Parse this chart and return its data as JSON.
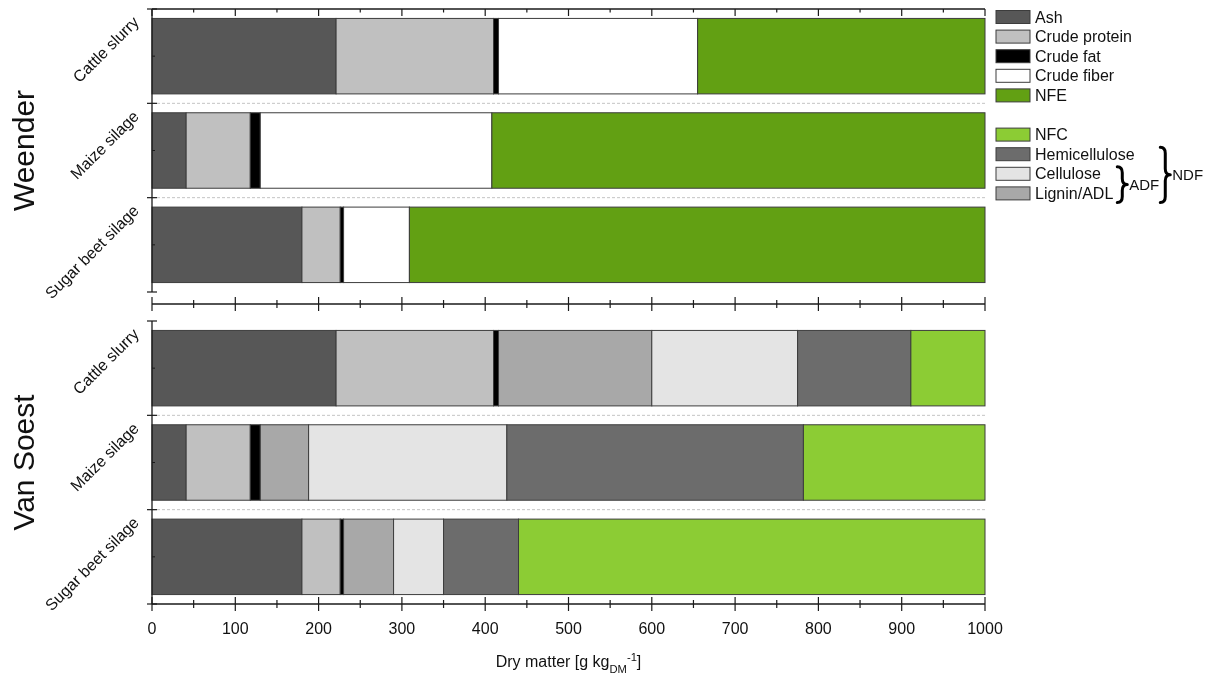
{
  "chart_data": [
    {
      "type": "bar",
      "orientation": "horizontal",
      "stacked": true,
      "ylabel": "Weender",
      "categories": [
        "Cattle slurry",
        "Maize silage",
        "Sugar beet silage"
      ],
      "series": [
        {
          "name": "Ash",
          "color": "#575757",
          "values": [
            221,
            41,
            180
          ]
        },
        {
          "name": "Crude protein",
          "color": "#c0c0c0",
          "values": [
            189,
            77,
            46
          ]
        },
        {
          "name": "Crude fat",
          "color": "#000000",
          "values": [
            6,
            12,
            4
          ]
        },
        {
          "name": "Crude fiber",
          "color": "#ffffff",
          "values": [
            239,
            278,
            79
          ]
        },
        {
          "name": "NFE",
          "color": "#62a013",
          "values": [
            345,
            592,
            691
          ]
        }
      ],
      "xlim": [
        0,
        1000
      ],
      "xticks": [
        0,
        {
          "value": 50,
          "label": null
        },
        100,
        {
          "value": 150,
          "label": null
        },
        200,
        {
          "value": 250,
          "label": null
        },
        300,
        {
          "value": 350,
          "label": null
        },
        400,
        {
          "value": 450,
          "label": null
        },
        500,
        {
          "value": 550,
          "label": null
        },
        600,
        {
          "value": 650,
          "label": null
        },
        700,
        {
          "value": 750,
          "label": null
        },
        800,
        {
          "value": 850,
          "label": null
        },
        900,
        {
          "value": 950,
          "label": null
        },
        1000
      ],
      "tick_labels": "y",
      "grid": "y",
      "legend": "right"
    },
    {
      "type": "bar",
      "orientation": "horizontal",
      "stacked": true,
      "ylabel": "Van Soest",
      "xlabel": "Dry matter [g kg$_{DM}$$^{-1}$]",
      "categories": [
        "Cattle slurry",
        "Maize silage",
        "Sugar beet silage"
      ],
      "series": [
        {
          "color": "#575757",
          "values": [
            221,
            41,
            180
          ]
        },
        {
          "color": "#c0c0c0",
          "values": [
            189,
            77,
            46
          ]
        },
        {
          "color": "#000000",
          "values": [
            6,
            12,
            4
          ]
        },
        {
          "name": "Lignin/ADL",
          "color": "#a8a8a8",
          "values": [
            184,
            58,
            60
          ]
        },
        {
          "name": "Cellulose",
          "color": "#e4e4e4",
          "values": [
            175,
            238,
            60
          ]
        },
        {
          "name": "Hemicellulose",
          "color": "#6c6c6c",
          "values": [
            136,
            356,
            90
          ]
        },
        {
          "name": "NFC",
          "color": "#8ccc34",
          "values": [
            89,
            218,
            560
          ]
        }
      ],
      "xlim": [
        0,
        1000
      ],
      "xticks": [
        0,
        {
          "value": 50,
          "label": null
        },
        100,
        {
          "value": 150,
          "label": null
        },
        200,
        {
          "value": 250,
          "label": null
        },
        300,
        {
          "value": 350,
          "label": null
        },
        400,
        {
          "value": 450,
          "label": null
        },
        500,
        {
          "value": 550,
          "label": null
        },
        600,
        {
          "value": 650,
          "label": null
        },
        700,
        {
          "value": 750,
          "label": null
        },
        800,
        {
          "value": 850,
          "label": null
        },
        900,
        {
          "value": 950,
          "label": null
        },
        1000
      ],
      "grid": "y",
      "legend": "right",
      "annotations": [
        "ADF",
        "NDF"
      ]
    }
  ]
}
